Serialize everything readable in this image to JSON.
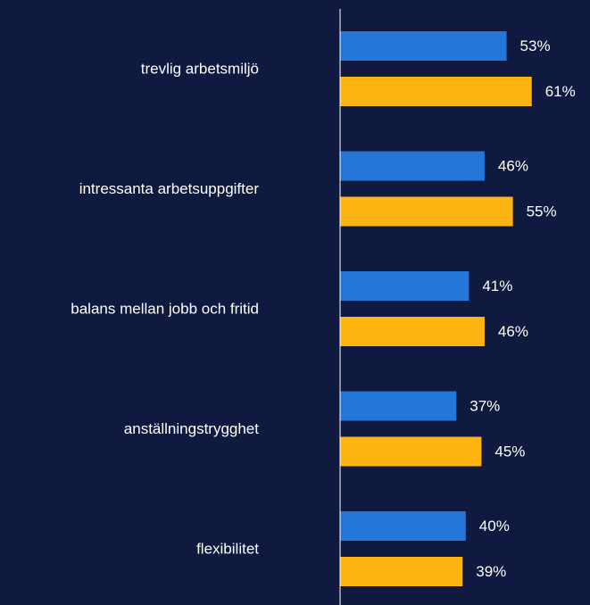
{
  "chart_data": {
    "type": "hbar",
    "categories": [
      "trevlig arbetsmiljö",
      "intressanta arbetsuppgifter",
      "balans mellan jobb och fritid",
      "anställningstrygghet",
      "flexibilitet"
    ],
    "series": [
      {
        "color": "#2476d9",
        "values": [
          53,
          46,
          41,
          37,
          40
        ],
        "value_labels": [
          "53%",
          "46%",
          "41%",
          "37%",
          "40%"
        ]
      },
      {
        "color": "#ffb511",
        "values": [
          61,
          55,
          46,
          45,
          39
        ],
        "value_labels": [
          "61%",
          "55%",
          "46%",
          "45%",
          "39%"
        ]
      }
    ],
    "xlim": [
      0,
      75
    ]
  }
}
